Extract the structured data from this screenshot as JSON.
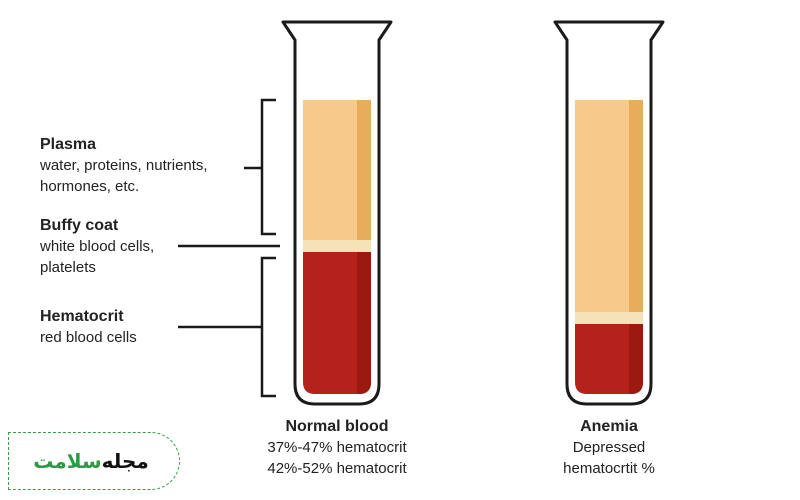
{
  "labels": {
    "plasma": {
      "title": "Plasma",
      "lines": [
        "water, proteins, nutrients,",
        "hormones, etc."
      ]
    },
    "buffy": {
      "title": "Buffy coat",
      "lines": [
        "white blood cells,",
        "platelets"
      ]
    },
    "hema": {
      "title": "Hematocrit",
      "lines": [
        "red blood cells"
      ]
    }
  },
  "tubes": {
    "normal": {
      "title": "Normal blood",
      "lines": [
        "37%-47% hematocrit",
        "42%-52% hematocrit"
      ]
    },
    "anemia": {
      "title": "Anemia",
      "lines": [
        "Depressed",
        "hematocrtit %"
      ]
    }
  },
  "logo": {
    "word1": "سلامت",
    "word2": "مجله"
  },
  "colors": {
    "plasma": "#f7c98a",
    "plasma_shade": "#e8ad5c",
    "buffy": "#f4e2b8",
    "blood": "#b5221b",
    "blood_shade": "#9c1912",
    "outline": "#1a1a1a",
    "logo_green": "#2e9a46"
  }
}
